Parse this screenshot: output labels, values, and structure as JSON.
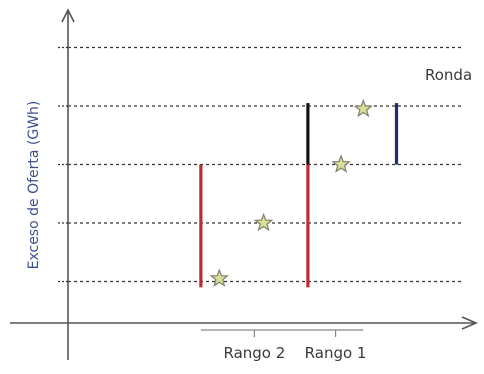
{
  "chart_data": {
    "type": "scatter",
    "ylabel": "Exceso de Oferta (GWh)",
    "xlabel": "",
    "levels": [
      1,
      2,
      3,
      4,
      5
    ],
    "series_label": "Ronda",
    "xlim": [
      0,
      11
    ],
    "ylim": [
      0,
      5.5
    ],
    "grid": true,
    "points": [
      {
        "x": 4.1,
        "y": 1.05
      },
      {
        "x": 5.3,
        "y": 2.0
      },
      {
        "x": 7.4,
        "y": 3.0
      },
      {
        "x": 8.0,
        "y": 3.95
      }
    ],
    "bars": [
      {
        "x": 3.6,
        "y0": 0.9,
        "y1": 3.0,
        "color": "#c0283a"
      },
      {
        "x": 6.5,
        "y0": 0.9,
        "y1": 3.0,
        "color": "#c0283a"
      },
      {
        "x": 6.5,
        "y0": 3.0,
        "y1": 4.05,
        "color": "#111111"
      },
      {
        "x": 8.9,
        "y0": 3.0,
        "y1": 4.05,
        "color": "#1d2f6f"
      }
    ],
    "ranges": [
      {
        "label": "Rango 2",
        "x0": 3.6,
        "x1": 6.5
      },
      {
        "label": "Rango 1",
        "x0": 6.5,
        "x1": 8.0
      }
    ],
    "colors": {
      "axis": "#555555",
      "grid": "#333333",
      "star_fill": "#d9df9a",
      "star_stroke": "#7f7f6e",
      "ylabel": "#3f4f8f"
    }
  }
}
